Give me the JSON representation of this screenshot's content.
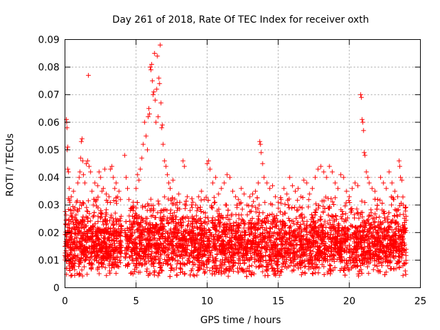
{
  "chart_data": {
    "type": "scatter",
    "title": "Day 261 of 2018, Rate Of TEC Index for receiver oxth",
    "xlabel": "GPS time / hours",
    "ylabel": "ROTI / TECUs",
    "xlim": [
      0,
      25
    ],
    "ylim": [
      0,
      0.09
    ],
    "grid": true,
    "marker": "plus",
    "series_color": "#ff0000",
    "x_ticks": [
      0,
      5,
      10,
      15,
      20,
      25
    ],
    "x_tick_labels": [
      "0",
      "5",
      "10",
      "15",
      "20",
      "25"
    ],
    "y_ticks": [
      0,
      0.01,
      0.02,
      0.03,
      0.04,
      0.05,
      0.06,
      0.07,
      0.08,
      0.09
    ],
    "y_tick_labels": [
      "0",
      "0.01",
      "0.02",
      "0.03",
      "0.04",
      "0.05",
      "0.06",
      "0.07",
      "0.08",
      "0.09"
    ],
    "series": [
      {
        "name": "ROTI",
        "points": [
          [
            0.1,
            0.061
          ],
          [
            0.12,
            0.06
          ],
          [
            0.14,
            0.058
          ],
          [
            0.15,
            0.05
          ],
          [
            0.2,
            0.051
          ],
          [
            0.2,
            0.043
          ],
          [
            0.25,
            0.042
          ],
          [
            0.3,
            0.036
          ],
          [
            0.35,
            0.031
          ],
          [
            0.4,
            0.028
          ],
          [
            0.45,
            0.033
          ],
          [
            0.5,
            0.027
          ],
          [
            0.6,
            0.035
          ],
          [
            0.7,
            0.029
          ],
          [
            0.8,
            0.031
          ],
          [
            0.9,
            0.038
          ],
          [
            1.0,
            0.04
          ],
          [
            1.05,
            0.042
          ],
          [
            1.1,
            0.047
          ],
          [
            1.15,
            0.053
          ],
          [
            1.2,
            0.054
          ],
          [
            1.25,
            0.046
          ],
          [
            1.3,
            0.041
          ],
          [
            1.4,
            0.038
          ],
          [
            1.5,
            0.045
          ],
          [
            1.6,
            0.046
          ],
          [
            1.65,
            0.077
          ],
          [
            1.7,
            0.044
          ],
          [
            1.8,
            0.042
          ],
          [
            1.9,
            0.035
          ],
          [
            2.0,
            0.03
          ],
          [
            2.1,
            0.038
          ],
          [
            2.2,
            0.032
          ],
          [
            2.3,
            0.037
          ],
          [
            2.4,
            0.042
          ],
          [
            2.5,
            0.04
          ],
          [
            2.6,
            0.035
          ],
          [
            2.7,
            0.036
          ],
          [
            2.8,
            0.043
          ],
          [
            2.9,
            0.034
          ],
          [
            3.0,
            0.031
          ],
          [
            3.1,
            0.033
          ],
          [
            3.2,
            0.043
          ],
          [
            3.3,
            0.044
          ],
          [
            3.4,
            0.04
          ],
          [
            3.5,
            0.036
          ],
          [
            3.6,
            0.038
          ],
          [
            3.7,
            0.033
          ],
          [
            3.8,
            0.035
          ],
          [
            3.9,
            0.032
          ],
          [
            4.2,
            0.048
          ],
          [
            4.3,
            0.04
          ],
          [
            4.4,
            0.036
          ],
          [
            4.5,
            0.032
          ],
          [
            4.6,
            0.028
          ],
          [
            4.8,
            0.031
          ],
          [
            5.0,
            0.036
          ],
          [
            5.1,
            0.041
          ],
          [
            5.2,
            0.039
          ],
          [
            5.3,
            0.043
          ],
          [
            5.4,
            0.047
          ],
          [
            5.5,
            0.052
          ],
          [
            5.6,
            0.06
          ],
          [
            5.7,
            0.055
          ],
          [
            5.8,
            0.05
          ],
          [
            5.85,
            0.062
          ],
          [
            5.9,
            0.065
          ],
          [
            5.95,
            0.063
          ],
          [
            6.0,
            0.08
          ],
          [
            6.05,
            0.079
          ],
          [
            6.1,
            0.081
          ],
          [
            6.15,
            0.075
          ],
          [
            6.2,
            0.07
          ],
          [
            6.25,
            0.071
          ],
          [
            6.3,
            0.085
          ],
          [
            6.35,
            0.068
          ],
          [
            6.4,
            0.06
          ],
          [
            6.45,
            0.072
          ],
          [
            6.5,
            0.084
          ],
          [
            6.55,
            0.062
          ],
          [
            6.6,
            0.076
          ],
          [
            6.65,
            0.074
          ],
          [
            6.7,
            0.088
          ],
          [
            6.75,
            0.067
          ],
          [
            6.8,
            0.058
          ],
          [
            6.85,
            0.059
          ],
          [
            6.9,
            0.052
          ],
          [
            7.0,
            0.046
          ],
          [
            7.1,
            0.044
          ],
          [
            7.2,
            0.041
          ],
          [
            7.3,
            0.038
          ],
          [
            7.4,
            0.036
          ],
          [
            7.6,
            0.039
          ],
          [
            7.8,
            0.03
          ],
          [
            8.0,
            0.034
          ],
          [
            8.3,
            0.046
          ],
          [
            8.4,
            0.044
          ],
          [
            8.6,
            0.033
          ],
          [
            8.8,
            0.028
          ],
          [
            9.0,
            0.031
          ],
          [
            9.2,
            0.03
          ],
          [
            9.4,
            0.033
          ],
          [
            9.6,
            0.035
          ],
          [
            9.8,
            0.032
          ],
          [
            10.0,
            0.045
          ],
          [
            10.1,
            0.046
          ],
          [
            10.2,
            0.043
          ],
          [
            10.4,
            0.038
          ],
          [
            10.6,
            0.04
          ],
          [
            10.8,
            0.034
          ],
          [
            11.0,
            0.036
          ],
          [
            11.2,
            0.038
          ],
          [
            11.4,
            0.041
          ],
          [
            11.6,
            0.04
          ],
          [
            11.8,
            0.035
          ],
          [
            12.0,
            0.033
          ],
          [
            12.2,
            0.032
          ],
          [
            12.4,
            0.036
          ],
          [
            12.6,
            0.034
          ],
          [
            12.8,
            0.03
          ],
          [
            13.0,
            0.033
          ],
          [
            13.2,
            0.034
          ],
          [
            13.4,
            0.035
          ],
          [
            13.6,
            0.038
          ],
          [
            13.7,
            0.053
          ],
          [
            13.75,
            0.052
          ],
          [
            13.8,
            0.049
          ],
          [
            13.9,
            0.045
          ],
          [
            14.0,
            0.04
          ],
          [
            14.2,
            0.038
          ],
          [
            14.4,
            0.036
          ],
          [
            14.6,
            0.037
          ],
          [
            14.8,
            0.033
          ],
          [
            15.0,
            0.031
          ],
          [
            15.2,
            0.032
          ],
          [
            15.4,
            0.036
          ],
          [
            15.6,
            0.034
          ],
          [
            15.8,
            0.04
          ],
          [
            16.0,
            0.037
          ],
          [
            16.2,
            0.035
          ],
          [
            16.4,
            0.036
          ],
          [
            16.6,
            0.033
          ],
          [
            16.8,
            0.039
          ],
          [
            17.0,
            0.038
          ],
          [
            17.2,
            0.034
          ],
          [
            17.4,
            0.036
          ],
          [
            17.6,
            0.04
          ],
          [
            17.8,
            0.043
          ],
          [
            18.0,
            0.044
          ],
          [
            18.2,
            0.042
          ],
          [
            18.4,
            0.04
          ],
          [
            18.6,
            0.044
          ],
          [
            18.8,
            0.042
          ],
          [
            19.0,
            0.038
          ],
          [
            19.2,
            0.036
          ],
          [
            19.4,
            0.041
          ],
          [
            19.6,
            0.04
          ],
          [
            19.8,
            0.035
          ],
          [
            20.0,
            0.033
          ],
          [
            20.2,
            0.036
          ],
          [
            20.4,
            0.038
          ],
          [
            20.6,
            0.037
          ],
          [
            20.8,
            0.07
          ],
          [
            20.85,
            0.069
          ],
          [
            20.9,
            0.061
          ],
          [
            20.95,
            0.06
          ],
          [
            21.0,
            0.057
          ],
          [
            21.05,
            0.049
          ],
          [
            21.1,
            0.048
          ],
          [
            21.2,
            0.042
          ],
          [
            21.3,
            0.04
          ],
          [
            21.4,
            0.038
          ],
          [
            21.6,
            0.036
          ],
          [
            21.8,
            0.035
          ],
          [
            22.0,
            0.032
          ],
          [
            22.2,
            0.04
          ],
          [
            22.4,
            0.038
          ],
          [
            22.6,
            0.036
          ],
          [
            22.8,
            0.042
          ],
          [
            23.0,
            0.038
          ],
          [
            23.2,
            0.035
          ],
          [
            23.4,
            0.033
          ],
          [
            23.5,
            0.046
          ],
          [
            23.55,
            0.044
          ],
          [
            23.6,
            0.04
          ],
          [
            23.7,
            0.039
          ],
          [
            23.8,
            0.03
          ]
        ],
        "dense_band": {
          "description": "continuous dense band of measurements",
          "x_range": [
            0,
            24
          ],
          "y_range": [
            0.004,
            0.033
          ],
          "typical_center": 0.015
        }
      }
    ]
  }
}
